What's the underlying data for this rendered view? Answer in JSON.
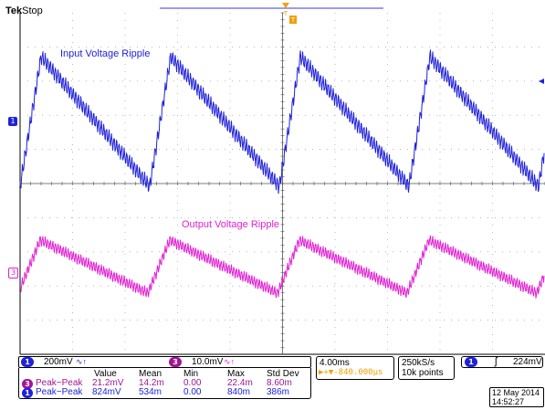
{
  "header": {
    "brand": "Tek",
    "status": "Stop"
  },
  "colors": {
    "ch1": "#1f22d9",
    "ch3": "#e11fd2",
    "trigger": "#f0a000",
    "grid": "#8c8c8c"
  },
  "traces": {
    "ch1_label": "Input Voltage Ripple",
    "ch3_label": "Output Voltage Ripple",
    "ch1_marker": "1",
    "ch3_marker": "3"
  },
  "scale": {
    "ch1_badge": "1",
    "ch1_volts": "200mV",
    "ch1_coupling": "∿↑",
    "ch3_badge": "3",
    "ch3_volts": "10.0mV",
    "ch3_coupling": "∿↑",
    "timebase": "4.00ms",
    "trigger_pos": "▶+▼-840.000µs",
    "sample_rate": "250kS/s",
    "record_length": "10k points",
    "trigger_badge": "1",
    "trigger_slope": "ʃ",
    "trigger_level": "224mV"
  },
  "measurements": {
    "headers": [
      "Value",
      "Mean",
      "Min",
      "Max",
      "Std Dev"
    ],
    "rows": [
      {
        "badge": "3",
        "name": "Peak−Peak",
        "values": [
          "21.2mV",
          "14.2m",
          "0.00",
          "22.4m",
          "8.60m"
        ]
      },
      {
        "badge": "1",
        "name": "Peak−Peak",
        "values": [
          "824mV",
          "534m",
          "0.00",
          "840m",
          "386m"
        ]
      }
    ]
  },
  "datetime": {
    "date": "12 May 2014",
    "time": "14:52:27"
  }
}
